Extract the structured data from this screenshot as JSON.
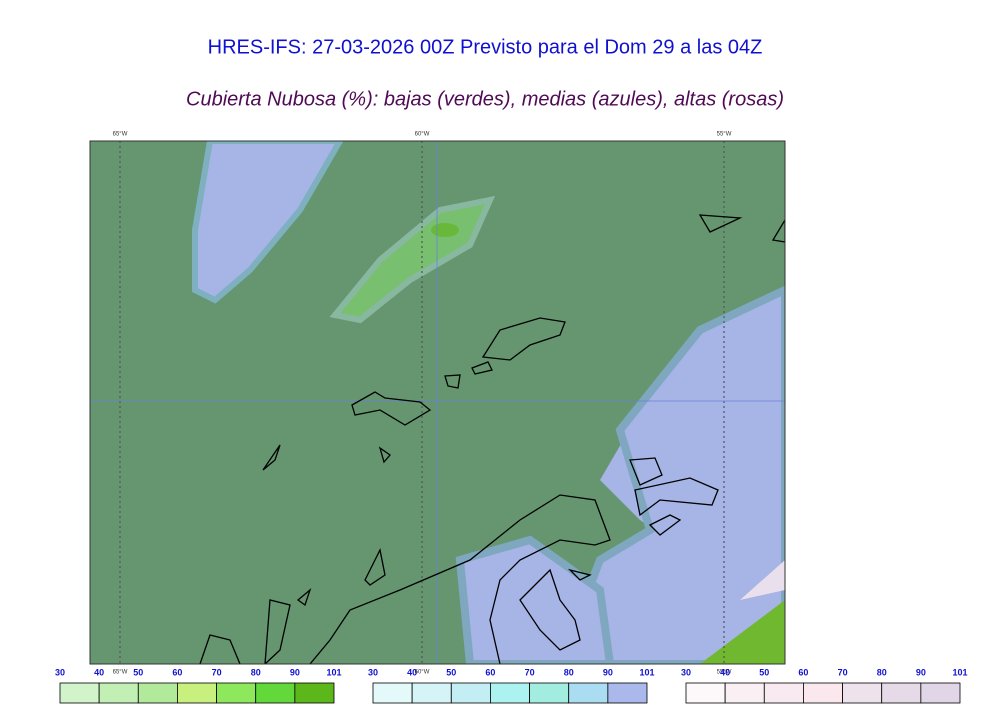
{
  "header": {
    "title": "HRES-IFS: 27-03-2026 00Z Previsto para el Dom 29 a las 04Z",
    "subtitle": "Cubierta Nubosa (%): bajas (verdes), medias (azules), altas (rosas)"
  },
  "map": {
    "longitude_labels": [
      "65°W",
      "60°W",
      "55°W"
    ]
  },
  "legends": [
    {
      "ticks": [
        30,
        40,
        50,
        60,
        70,
        80,
        90,
        101
      ],
      "colors": [
        "#d2f4ca",
        "#c2f0b4",
        "#b2ea9c",
        "#c8f07e",
        "#8ee85c",
        "#62d83a",
        "#5cb81a"
      ]
    },
    {
      "ticks": [
        30,
        40,
        50,
        60,
        70,
        80,
        90,
        101
      ],
      "colors": [
        "#e4f9f9",
        "#d4f4f8",
        "#c2eef4",
        "#acf2f0",
        "#a2ece0",
        "#aadcf2",
        "#aab8ec"
      ]
    },
    {
      "ticks": [
        30,
        40,
        50,
        60,
        70,
        80,
        90,
        101
      ],
      "colors": [
        "#fdf8fa",
        "#faf0f4",
        "#f8eaf0",
        "#fae8ee",
        "#eee2ec",
        "#e6dae8",
        "#e0d6e8"
      ]
    }
  ]
}
